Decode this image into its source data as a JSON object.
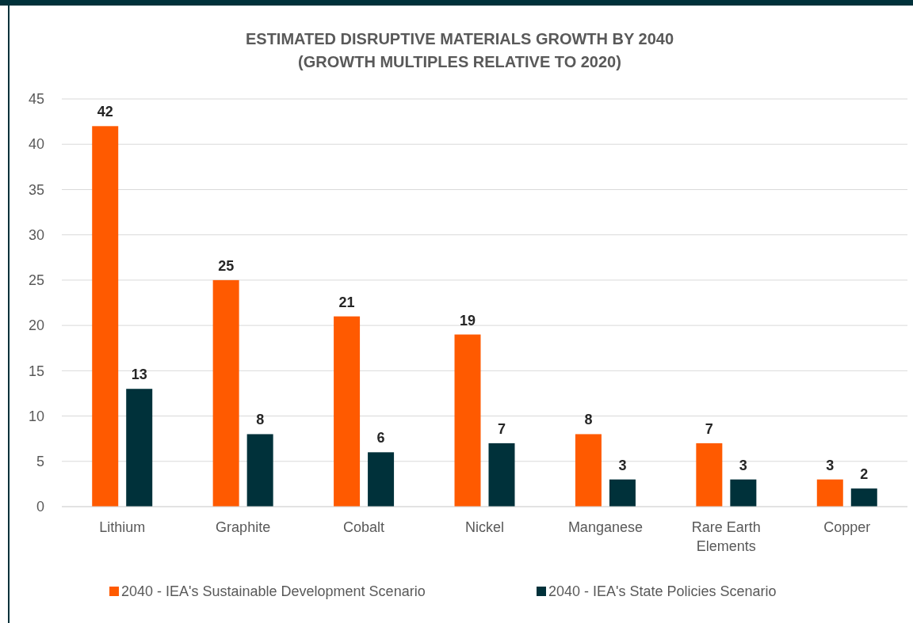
{
  "chart_data": {
    "type": "bar",
    "title": "ESTIMATED DISRUPTIVE MATERIALS GROWTH BY 2040\n(GROWTH MULTIPLES RELATIVE TO 2020)",
    "categories": [
      "Lithium",
      "Graphite",
      "Cobalt",
      "Nickel",
      "Manganese",
      "Rare Earth Elements",
      "Copper"
    ],
    "series": [
      {
        "name": "2040 - IEA's Sustainable Development Scenario",
        "color": "#ff5a00",
        "values": [
          42,
          25,
          21,
          19,
          8,
          7,
          3
        ]
      },
      {
        "name": "2040 - IEA's State Policies Scenario",
        "color": "#00313a",
        "values": [
          13,
          8,
          6,
          7,
          3,
          3,
          2
        ]
      }
    ],
    "ylim": [
      0,
      45
    ],
    "yticks": [
      0,
      5,
      10,
      15,
      20,
      25,
      30,
      35,
      40,
      45
    ],
    "grid": "y",
    "legend": "bottom",
    "data_labels": true
  }
}
